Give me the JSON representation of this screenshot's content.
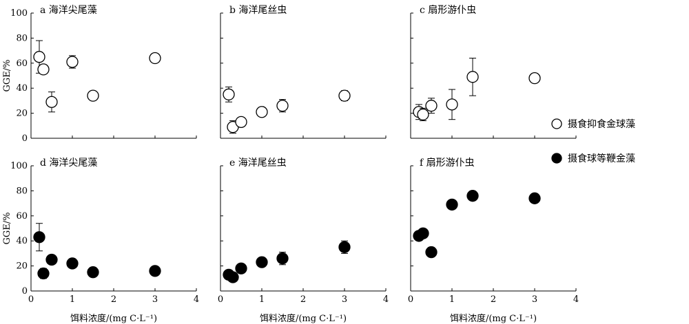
{
  "chart_data": [
    {
      "type": "scatter",
      "title": "a 海洋尖尾藻",
      "ylabel": "GGE/%",
      "xlabel": "",
      "ylim": [
        0,
        100
      ],
      "xlim": [
        0,
        4
      ],
      "yticks": [
        0,
        20,
        40,
        60,
        80,
        100
      ],
      "xticks": [],
      "series_style": "open",
      "points": [
        {
          "x": 0.2,
          "y": 65,
          "err": 13
        },
        {
          "x": 0.3,
          "y": 55,
          "err": 0
        },
        {
          "x": 0.5,
          "y": 29,
          "err": 8
        },
        {
          "x": 1.0,
          "y": 61,
          "err": 5
        },
        {
          "x": 1.5,
          "y": 34,
          "err": 0
        },
        {
          "x": 3.0,
          "y": 64,
          "err": 0
        }
      ]
    },
    {
      "type": "scatter",
      "title": "b 海洋尾丝虫",
      "ylabel": "",
      "xlabel": "",
      "ylim": [
        0,
        100
      ],
      "xlim": [
        0,
        4
      ],
      "yticks": [],
      "xticks": [],
      "series_style": "open",
      "points": [
        {
          "x": 0.2,
          "y": 35,
          "err": 6
        },
        {
          "x": 0.3,
          "y": 9,
          "err": 5
        },
        {
          "x": 0.5,
          "y": 13,
          "err": 0
        },
        {
          "x": 1.0,
          "y": 21,
          "err": 0
        },
        {
          "x": 1.5,
          "y": 26,
          "err": 5
        },
        {
          "x": 3.0,
          "y": 34,
          "err": 4
        }
      ]
    },
    {
      "type": "scatter",
      "title": "c 扇形游仆虫",
      "ylabel": "",
      "xlabel": "",
      "ylim": [
        0,
        100
      ],
      "xlim": [
        0,
        4
      ],
      "yticks": [],
      "xticks": [],
      "series_style": "open",
      "points": [
        {
          "x": 0.2,
          "y": 21,
          "err": 6
        },
        {
          "x": 0.3,
          "y": 19,
          "err": 5
        },
        {
          "x": 0.5,
          "y": 26,
          "err": 6
        },
        {
          "x": 1.0,
          "y": 27,
          "err": 12
        },
        {
          "x": 1.5,
          "y": 49,
          "err": 15
        },
        {
          "x": 3.0,
          "y": 48,
          "err": 0
        }
      ]
    },
    {
      "type": "scatter",
      "title": "d 海洋尖尾藻",
      "ylabel": "GGE/%",
      "xlabel": "饵料浓度/(mg C·L⁻¹)",
      "ylim": [
        0,
        100
      ],
      "xlim": [
        0,
        4
      ],
      "yticks": [
        0,
        20,
        40,
        60,
        80,
        100
      ],
      "xticks": [
        0,
        1,
        2,
        3,
        4
      ],
      "series_style": "filled",
      "points": [
        {
          "x": 0.2,
          "y": 43,
          "err": 11
        },
        {
          "x": 0.3,
          "y": 14,
          "err": 4
        },
        {
          "x": 0.5,
          "y": 25,
          "err": 0
        },
        {
          "x": 1.0,
          "y": 22,
          "err": 0
        },
        {
          "x": 1.5,
          "y": 15,
          "err": 0
        },
        {
          "x": 3.0,
          "y": 16,
          "err": 0
        }
      ]
    },
    {
      "type": "scatter",
      "title": "e 海洋尾丝虫",
      "ylabel": "",
      "xlabel": "饵料浓度/(mg C·L⁻¹)",
      "ylim": [
        0,
        100
      ],
      "xlim": [
        0,
        4
      ],
      "yticks": [],
      "xticks": [
        0,
        1,
        2,
        3,
        4
      ],
      "series_style": "filled",
      "points": [
        {
          "x": 0.2,
          "y": 13,
          "err": 0
        },
        {
          "x": 0.3,
          "y": 11,
          "err": 0
        },
        {
          "x": 0.5,
          "y": 18,
          "err": 0
        },
        {
          "x": 1.0,
          "y": 23,
          "err": 3
        },
        {
          "x": 1.5,
          "y": 26,
          "err": 5
        },
        {
          "x": 3.0,
          "y": 35,
          "err": 5
        }
      ]
    },
    {
      "type": "scatter",
      "title": "f 扇形游仆虫",
      "ylabel": "",
      "xlabel": "饵料浓度/(mg C·L⁻¹)",
      "ylim": [
        0,
        100
      ],
      "xlim": [
        0,
        4
      ],
      "yticks": [],
      "xticks": [
        0,
        1,
        2,
        3,
        4
      ],
      "series_style": "filled",
      "points": [
        {
          "x": 0.2,
          "y": 44,
          "err": 3
        },
        {
          "x": 0.3,
          "y": 46,
          "err": 0
        },
        {
          "x": 0.5,
          "y": 31,
          "err": 0
        },
        {
          "x": 1.0,
          "y": 69,
          "err": 0
        },
        {
          "x": 1.5,
          "y": 76,
          "err": 0
        },
        {
          "x": 3.0,
          "y": 74,
          "err": 0
        }
      ]
    }
  ],
  "legend": {
    "placement": "right",
    "items": [
      {
        "label": "摄食抑食金球藻",
        "style": "open"
      },
      {
        "label": "摄食球等鞭金藻",
        "style": "filled"
      }
    ]
  }
}
